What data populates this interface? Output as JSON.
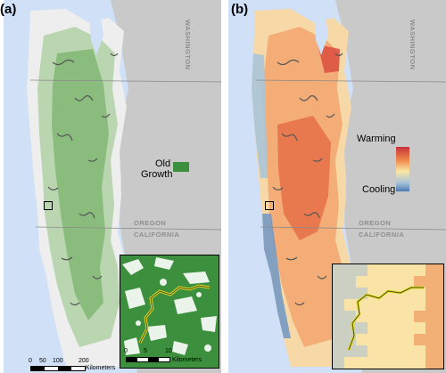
{
  "panels": {
    "a": {
      "label": "(a)",
      "states": {
        "washington": "WASHINGTON",
        "oregon": "OREGON",
        "california": "CALIFORNIA"
      },
      "legend": {
        "line1": "Old",
        "line2": "Growth",
        "color": "#3c8f3c"
      },
      "scalebar": {
        "ticks": [
          "0",
          "50",
          "100",
          "200"
        ],
        "unit": "Kilometers"
      },
      "inset_scalebar": {
        "ticks": [
          "0",
          "5",
          "10"
        ],
        "unit": "Kilometers"
      }
    },
    "b": {
      "label": "(b)",
      "states": {
        "washington": "WASHINGTON",
        "oregon": "OREGON",
        "california": "CALIFORNIA"
      },
      "legend": {
        "high": "Warming",
        "low": "Cooling",
        "ramp_colors": [
          "#c6333a",
          "#f08a4c",
          "#fbe7a4",
          "#a9c5d8",
          "#4a78b3"
        ]
      }
    }
  },
  "colors": {
    "ocean": "#cfe0f7",
    "land": "#e9e9e9",
    "stream": "#555555",
    "trail": "#e3df2a"
  }
}
